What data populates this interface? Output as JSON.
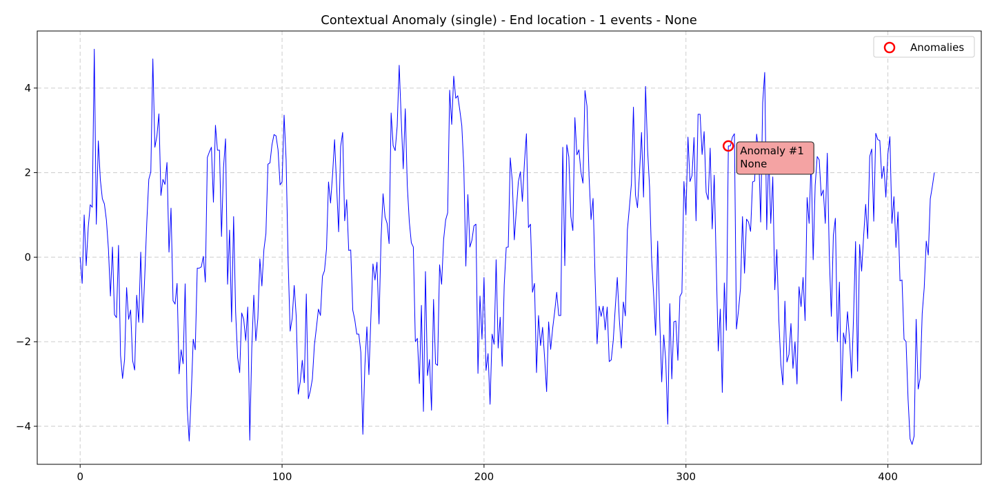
{
  "chart_data": {
    "type": "line",
    "title": "Contextual Anomaly (single) - End location - 1 events - None",
    "xlabel": "",
    "ylabel": "",
    "xlim": [
      -21.25,
      446.25
    ],
    "ylim": [
      -4.9,
      5.35
    ],
    "xticks": [
      0,
      100,
      200,
      300,
      400
    ],
    "yticks": [
      -4,
      -2,
      0,
      2,
      4
    ],
    "grid": true,
    "legend_position": "top-right",
    "series": [
      {
        "name": "",
        "color": "#0000ff",
        "values": [
          0,
          -0.62,
          1.0,
          -0.2,
          0.7,
          1.24,
          1.18,
          4.92,
          0.78,
          2.75,
          1.83,
          1.38,
          1.26,
          0.88,
          0.2,
          -0.92,
          0.24,
          -1.36,
          -1.43,
          0.28,
          -2.32,
          -2.87,
          -2.42,
          -0.72,
          -1.47,
          -1.25,
          -2.45,
          -2.67,
          -0.9,
          -1.54,
          0.12,
          -1.55,
          -0.44,
          0.82,
          1.84,
          2.02,
          4.69,
          2.6,
          2.86,
          3.39,
          1.46,
          1.84,
          1.72,
          2.24,
          0.12,
          1.16,
          -1.03,
          -1.11,
          -0.62,
          -2.76,
          -2.19,
          -2.52,
          -0.63,
          -3.54,
          -4.35,
          -3.25,
          -1.94,
          -2.19,
          -0.26,
          -0.26,
          -0.23,
          0.02,
          -0.59,
          2.36,
          2.49,
          2.6,
          1.3,
          3.12,
          2.53,
          2.53,
          0.49,
          2.12,
          2.8,
          -0.64,
          0.64,
          -1.53,
          0.96,
          -1.3,
          -2.38,
          -2.73,
          -1.32,
          -1.47,
          -1.97,
          -1.18,
          -4.33,
          -2.15,
          -0.9,
          -1.98,
          -1.45,
          -0.04,
          -0.68,
          0.18,
          0.56,
          2.2,
          2.23,
          2.66,
          2.9,
          2.87,
          2.54,
          1.71,
          1.78,
          3.36,
          2.3,
          -0.1,
          -1.75,
          -1.45,
          -0.67,
          -1.4,
          -3.24,
          -2.95,
          -2.44,
          -2.97,
          -0.87,
          -3.35,
          -3.16,
          -2.88,
          -2.08,
          -1.67,
          -1.23,
          -1.38,
          -0.45,
          -0.32,
          0.2,
          1.78,
          1.28,
          1.95,
          2.78,
          1.7,
          0.6,
          2.62,
          2.95,
          0.86,
          1.36,
          0.16,
          0.17,
          -1.25,
          -1.48,
          -1.82,
          -1.82,
          -2.25,
          -4.19,
          -2.58,
          -1.65,
          -2.78,
          -1.4,
          -0.16,
          -0.54,
          -0.12,
          -1.58,
          0.42,
          1.5,
          0.95,
          0.8,
          0.32,
          3.41,
          2.64,
          2.52,
          3.1,
          4.54,
          3.27,
          2.09,
          3.51,
          1.7,
          0.84,
          0.34,
          0.24,
          -2.0,
          -1.92,
          -2.99,
          -1.14,
          -3.65,
          -0.34,
          -2.8,
          -2.42,
          -3.62,
          -1.0,
          -2.52,
          -2.56,
          -0.18,
          -0.64,
          0.42,
          0.88,
          1.05,
          3.95,
          3.14,
          4.28,
          3.76,
          3.82,
          3.48,
          3.11,
          2.12,
          -0.21,
          1.48,
          0.24,
          0.4,
          0.74,
          0.78,
          -2.75,
          -0.92,
          -1.94,
          -0.48,
          -2.68,
          -2.28,
          -3.48,
          -1.82,
          -2.06,
          -0.06,
          -2.15,
          -1.42,
          -2.58,
          -0.66,
          0.23,
          0.24,
          2.35,
          1.8,
          0.41,
          1.12,
          1.78,
          2.02,
          1.32,
          2.22,
          2.92,
          0.7,
          0.78,
          -0.83,
          -0.62,
          -2.73,
          -1.38,
          -2.09,
          -1.66,
          -2.38,
          -3.18,
          -1.53,
          -2.18,
          -1.68,
          -1.29,
          -0.83,
          -1.38,
          -1.38,
          2.6,
          -0.2,
          2.66,
          2.37,
          0.96,
          0.63,
          3.3,
          2.42,
          2.54,
          2.01,
          1.75,
          3.94,
          3.57,
          1.93,
          0.89,
          1.39,
          -0.48,
          -2.05,
          -1.16,
          -1.4,
          -1.16,
          -1.72,
          -1.18,
          -2.47,
          -2.43,
          -1.97,
          -1.19,
          -0.48,
          -1.47,
          -2.15,
          -1.06,
          -1.39,
          0.65,
          1.18,
          1.74,
          3.55,
          1.47,
          1.17,
          1.99,
          2.95,
          1.42,
          4.04,
          2.54,
          1.65,
          -0.05,
          -0.89,
          -1.85,
          0.38,
          -1.46,
          -2.95,
          -1.84,
          -2.45,
          -3.95,
          -1.1,
          -2.88,
          -1.53,
          -1.51,
          -2.44,
          -0.93,
          -0.84,
          1.79,
          1.0,
          2.84,
          1.79,
          1.93,
          2.83,
          0.86,
          3.38,
          3.38,
          2.43,
          2.97,
          1.53,
          1.36,
          2.58,
          0.67,
          1.94,
          -0.16,
          -2.22,
          -1.23,
          -3.2,
          -0.61,
          -1.73,
          2.63,
          2.63,
          2.84,
          2.92,
          -1.7,
          -1.27,
          -0.74,
          0.96,
          -0.38,
          0.9,
          0.83,
          0.61,
          1.78,
          1.8,
          2.91,
          2.48,
          0.83,
          3.65,
          4.37,
          0.65,
          2.47,
          0.8,
          1.9,
          -0.77,
          0.18,
          -1.48,
          -2.53,
          -3.02,
          -1.04,
          -2.48,
          -2.3,
          -1.57,
          -2.63,
          -2.0,
          -3.0,
          -0.7,
          -1.17,
          -0.48,
          -1.5,
          1.41,
          0.8,
          2.35,
          -0.06,
          1.7,
          2.38,
          2.3,
          1.45,
          1.59,
          0.8,
          2.46,
          0.02,
          -1.4,
          0.52,
          0.92,
          -2.0,
          -0.59,
          -3.4,
          -1.79,
          -2.05,
          -1.29,
          -1.94,
          -2.86,
          -1.42,
          0.37,
          -2.7,
          0.3,
          -0.33,
          0.5,
          1.25,
          0.44,
          2.38,
          2.56,
          0.85,
          2.93,
          2.78,
          2.76,
          1.86,
          2.15,
          1.42,
          2.44,
          2.85,
          0.8,
          1.43,
          0.23,
          1.07,
          -0.56,
          -0.54,
          -1.94,
          -2.0,
          -3.36,
          -4.3,
          -4.43,
          -4.23,
          -1.47,
          -3.12,
          -2.86,
          -1.33,
          -0.72,
          0.38,
          0.05,
          1.38,
          1.67,
          2.0
        ]
      }
    ],
    "anomalies": [
      {
        "x": 321,
        "y": 2.63,
        "label": "Anomaly #1\nNone"
      }
    ],
    "legend": [
      {
        "label": "Anomalies",
        "marker": "circle-outline",
        "color": "#ff0000"
      }
    ],
    "annotation_style": {
      "fill": "#f4a3a3",
      "border": "#333333"
    }
  }
}
